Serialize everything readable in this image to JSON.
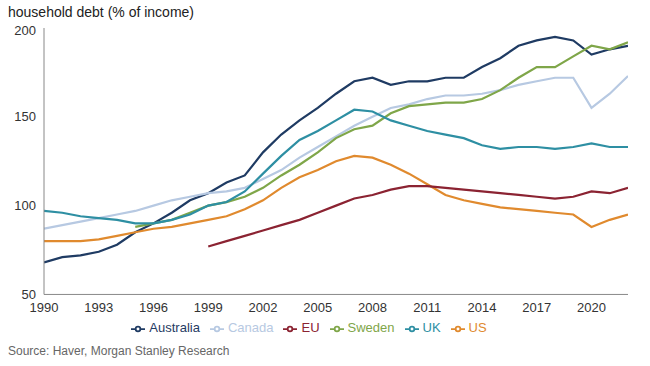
{
  "chart_data": {
    "type": "line",
    "title": "household debt (% of income)",
    "source": "Source: Haver, Morgan Stanley Research",
    "x": [
      1990,
      1991,
      1992,
      1993,
      1994,
      1995,
      1996,
      1997,
      1998,
      1999,
      2000,
      2001,
      2002,
      2003,
      2004,
      2005,
      2006,
      2007,
      2008,
      2009,
      2010,
      2011,
      2012,
      2013,
      2014,
      2015,
      2016,
      2017,
      2018,
      2019,
      2020,
      2021,
      2022
    ],
    "series": [
      {
        "name": "Australia",
        "color": "#1f3b63",
        "values": [
          68,
          71,
          72,
          74,
          78,
          85,
          90,
          96,
          103,
          107,
          113,
          117,
          130,
          140,
          148,
          155,
          163,
          170,
          172,
          168,
          170,
          170,
          172,
          172,
          178,
          183,
          190,
          193,
          195,
          193,
          185,
          188,
          190
        ]
      },
      {
        "name": "Canada",
        "color": "#b7c9e2",
        "values": [
          87,
          89,
          91,
          93,
          95,
          97,
          100,
          103,
          105,
          107,
          108,
          110,
          115,
          120,
          127,
          133,
          139,
          145,
          150,
          155,
          157,
          160,
          162,
          162,
          163,
          165,
          168,
          170,
          172,
          172,
          155,
          163,
          173
        ]
      },
      {
        "name": "Sweden",
        "color": "#7fa649",
        "values": [
          null,
          null,
          null,
          null,
          null,
          88,
          90,
          92,
          96,
          100,
          102,
          105,
          110,
          117,
          123,
          130,
          138,
          143,
          145,
          152,
          156,
          157,
          158,
          158,
          160,
          165,
          172,
          178,
          178,
          184,
          190,
          188,
          192
        ]
      },
      {
        "name": "UK",
        "color": "#2e8fa3",
        "values": [
          97,
          96,
          94,
          93,
          92,
          90,
          90,
          92,
          95,
          100,
          102,
          108,
          118,
          128,
          137,
          142,
          148,
          154,
          153,
          148,
          145,
          142,
          140,
          138,
          134,
          132,
          133,
          133,
          132,
          133,
          135,
          133,
          133
        ]
      },
      {
        "name": "US",
        "color": "#e08a2e",
        "values": [
          80,
          80,
          80,
          81,
          83,
          85,
          87,
          88,
          90,
          92,
          94,
          98,
          103,
          110,
          116,
          120,
          125,
          128,
          127,
          123,
          118,
          112,
          106,
          103,
          101,
          99,
          98,
          97,
          96,
          95,
          88,
          92,
          95
        ]
      },
      {
        "name": "EU",
        "color": "#8b2332",
        "values": [
          null,
          null,
          null,
          null,
          null,
          null,
          null,
          null,
          null,
          77,
          80,
          83,
          86,
          89,
          92,
          96,
          100,
          104,
          106,
          109,
          111,
          111,
          110,
          109,
          108,
          107,
          106,
          105,
          104,
          105,
          108,
          107,
          110
        ]
      }
    ],
    "xlim": [
      1990,
      2022
    ],
    "xticks": [
      1990,
      1993,
      1996,
      1999,
      2002,
      2005,
      2008,
      2011,
      2014,
      2017,
      2020
    ],
    "ylim": [
      50,
      200
    ],
    "yticks": [
      50,
      100,
      150,
      200
    ],
    "grid": false,
    "legend": "bottom"
  }
}
